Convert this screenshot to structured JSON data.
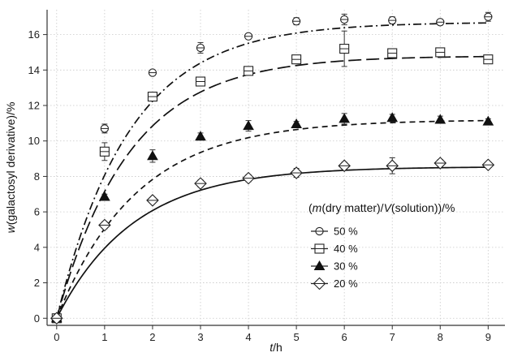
{
  "chart_data": {
    "type": "scatter",
    "xlabel_italic": "t",
    "xlabel_rest": "/h",
    "ylabel_italic": "w",
    "ylabel_rest": "(galactosyl derivative)/%",
    "xlim": [
      -0.2,
      9.35
    ],
    "ylim": [
      -0.4,
      17.4
    ],
    "xticks": [
      0,
      1,
      2,
      3,
      4,
      5,
      6,
      7,
      8,
      9
    ],
    "yticks": [
      0,
      2,
      4,
      6,
      8,
      10,
      12,
      14,
      16
    ],
    "grid": true,
    "legend_placement": "bottom-right",
    "legend_title": "(m(dry matter)/V(solution))/%",
    "legend_title_parts": [
      "(",
      "m",
      "(dry matter)/",
      "V",
      "(solution))/%"
    ],
    "series": [
      {
        "name": "50 %",
        "marker": "circle-line",
        "line_style": "dash-dot",
        "x": [
          0,
          1,
          2,
          3,
          4,
          5,
          6,
          7,
          8,
          9
        ],
        "y": [
          0,
          10.7,
          13.85,
          15.25,
          15.9,
          16.75,
          16.85,
          16.8,
          16.7,
          17.0
        ],
        "err": [
          0.2,
          0.25,
          0.15,
          0.3,
          0.1,
          0.2,
          0.3,
          0.2,
          0.15,
          0.25
        ],
        "fit": {
          "a": 16.7,
          "k": 0.66
        }
      },
      {
        "name": "40 %",
        "marker": "square",
        "line_style": "long-dash",
        "x": [
          0,
          1,
          2,
          3,
          4,
          5,
          6,
          7,
          8,
          9
        ],
        "y": [
          0,
          9.4,
          12.5,
          13.35,
          13.95,
          14.6,
          15.2,
          14.95,
          15.0,
          14.6
        ],
        "err": [
          0.2,
          0.5,
          0.15,
          0.2,
          0.2,
          0.15,
          1.0,
          0.15,
          0.2,
          0.2
        ],
        "fit": {
          "a": 14.8,
          "k": 0.66
        }
      },
      {
        "name": "30 %",
        "marker": "triangle-filled",
        "line_style": "dash",
        "x": [
          0,
          1,
          2,
          3,
          4,
          5,
          6,
          7,
          8,
          9
        ],
        "y": [
          0,
          6.85,
          9.15,
          10.25,
          10.85,
          10.95,
          11.25,
          11.3,
          11.2,
          11.1
        ],
        "err": [
          0.2,
          0.15,
          0.35,
          0.2,
          0.3,
          0.15,
          0.3,
          0.2,
          0.2,
          0.15
        ],
        "fit": {
          "a": 11.2,
          "k": 0.6
        }
      },
      {
        "name": "20 %",
        "marker": "diamond",
        "line_style": "solid",
        "x": [
          0,
          1,
          2,
          3,
          4,
          5,
          6,
          7,
          8,
          9
        ],
        "y": [
          0,
          5.25,
          6.65,
          7.6,
          7.9,
          8.2,
          8.6,
          8.6,
          8.75,
          8.65
        ],
        "err": [
          0.2,
          0.2,
          0.15,
          0.2,
          0.2,
          0.25,
          0.2,
          0.45,
          0.2,
          0.15
        ],
        "fit": {
          "a": 8.55,
          "k": 0.62
        }
      }
    ]
  }
}
